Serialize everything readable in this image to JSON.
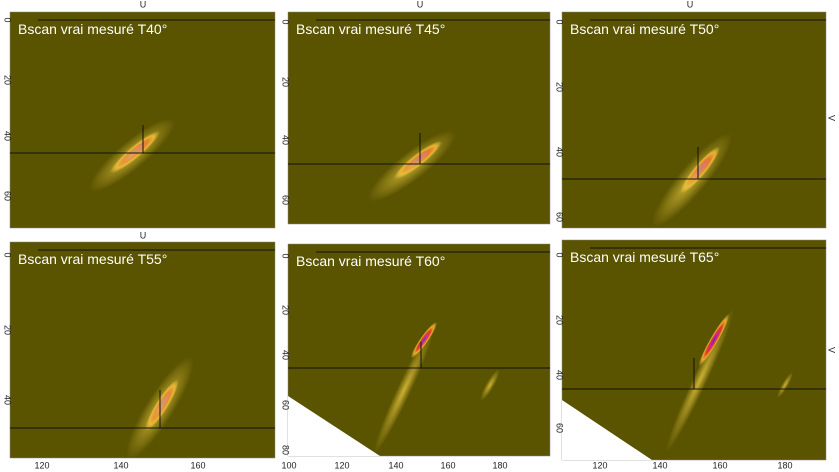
{
  "panels": [
    {
      "title": "Bscan vrai mesuré T40°",
      "top_axis": "U",
      "yticks": [
        "0",
        "20",
        "40",
        "60"
      ]
    },
    {
      "title": "Bscan vrai mesuré T45°",
      "top_axis": "U",
      "yticks": [
        "0",
        "20",
        "40",
        "60"
      ]
    },
    {
      "title": "Bscan vrai mesuré T50°",
      "top_axis": "U",
      "right_axis": "V",
      "yticks": [
        "0",
        "20",
        "40",
        "60"
      ]
    },
    {
      "title": "Bscan vrai mesuré T55°",
      "top_axis": "U",
      "yticks": [
        "0",
        "20",
        "40"
      ],
      "xticks": [
        "120",
        "140",
        "160"
      ]
    },
    {
      "title": "Bscan vrai mesuré T60°",
      "yticks": [
        "0",
        "20",
        "40",
        "60",
        "80"
      ],
      "xticks": [
        "100",
        "120",
        "140",
        "160",
        "180"
      ]
    },
    {
      "title": "Bscan vrai mesuré T65°",
      "right_axis": "V",
      "yticks": [
        "0",
        "20",
        "40",
        "60"
      ],
      "xticks": [
        "120",
        "140",
        "160",
        "180"
      ]
    }
  ]
}
